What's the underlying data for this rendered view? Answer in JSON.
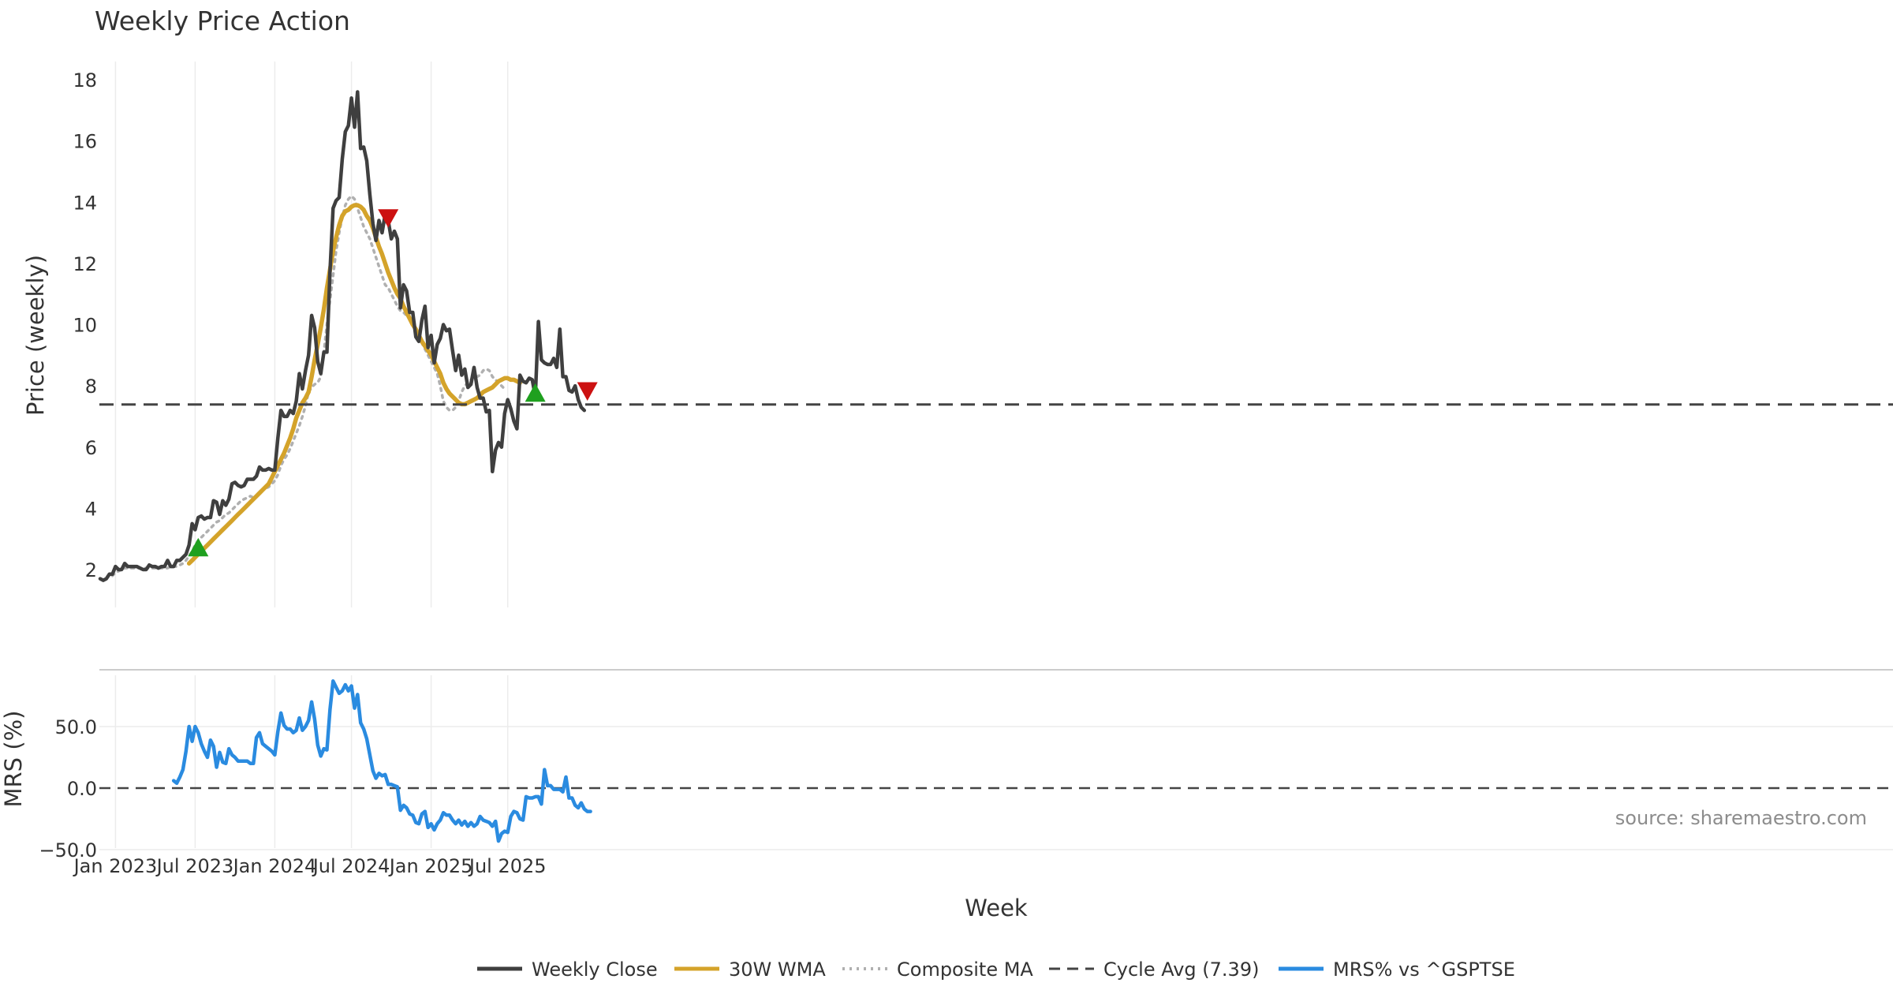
{
  "chart_data": [
    {
      "type": "line",
      "title": "Weekly Price Action",
      "ylabel": "Price (weekly)",
      "xlabel": "Week",
      "ylim": [
        1,
        19
      ],
      "yticks": [
        2,
        4,
        6,
        8,
        10,
        12,
        14,
        16,
        18
      ],
      "x_start": "2022-11-28",
      "x_step_weeks": 1,
      "reference_line": {
        "name": "Cycle Avg (7.39)",
        "value": 7.39
      },
      "series": [
        {
          "name": "Weekly Close",
          "color": "#3f3f3f",
          "style": "solid",
          "values": [
            1.7,
            1.65,
            1.7,
            1.85,
            1.85,
            2.1,
            2.0,
            2.0,
            2.2,
            2.1,
            2.1,
            2.1,
            2.1,
            2.05,
            2.0,
            2.0,
            2.15,
            2.1,
            2.1,
            2.05,
            2.1,
            2.1,
            2.3,
            2.1,
            2.1,
            2.3,
            2.3,
            2.4,
            2.5,
            2.8,
            3.5,
            3.3,
            3.7,
            3.75,
            3.65,
            3.7,
            3.7,
            4.25,
            4.2,
            3.8,
            4.25,
            4.1,
            4.3,
            4.8,
            4.85,
            4.75,
            4.7,
            4.75,
            4.95,
            4.95,
            4.95,
            5.05,
            5.35,
            5.25,
            5.25,
            5.3,
            5.25,
            5.25,
            6.3,
            7.2,
            7.0,
            7.0,
            7.2,
            7.1,
            7.5,
            8.4,
            7.9,
            8.5,
            9.0,
            10.3,
            9.9,
            8.8,
            8.4,
            9.1,
            9.1,
            11.75,
            13.8,
            14.05,
            14.15,
            15.4,
            16.3,
            16.5,
            17.4,
            16.45,
            17.6,
            15.75,
            15.8,
            15.35,
            14.25,
            13.3,
            12.75,
            13.4,
            13.0,
            13.6,
            13.4,
            12.8,
            13.05,
            12.8,
            10.55,
            11.3,
            11.1,
            10.4,
            10.4,
            9.6,
            9.45,
            10.15,
            10.6,
            9.25,
            9.65,
            8.75,
            9.35,
            9.55,
            10.0,
            9.8,
            9.85,
            9.15,
            8.5,
            9.0,
            8.35,
            8.55,
            7.95,
            8.05,
            8.6,
            7.95,
            7.6,
            7.6,
            7.15,
            7.2,
            5.2,
            5.9,
            6.15,
            6.0,
            7.1,
            7.55,
            7.25,
            6.85,
            6.6,
            8.35,
            8.15,
            8.1,
            8.25,
            8.2,
            7.65,
            10.1,
            8.85,
            8.75,
            8.7,
            8.7,
            8.9,
            8.6,
            9.85,
            8.3,
            8.3,
            7.85,
            7.8,
            8.0,
            7.55,
            7.3,
            7.2
          ]
        },
        {
          "name": "30W WMA",
          "color": "#d4a32a",
          "style": "solid",
          "start_week": 29,
          "values": [
            2.2,
            2.3,
            2.4,
            2.5,
            2.6,
            2.7,
            2.8,
            2.9,
            3.0,
            3.1,
            3.2,
            3.3,
            3.4,
            3.5,
            3.6,
            3.7,
            3.8,
            3.9,
            4.0,
            4.1,
            4.2,
            4.3,
            4.4,
            4.5,
            4.6,
            4.7,
            4.8,
            5.0,
            5.2,
            5.4,
            5.6,
            5.8,
            6.05,
            6.3,
            6.6,
            6.95,
            7.2,
            7.45,
            7.6,
            7.8,
            8.3,
            8.85,
            9.35,
            9.9,
            10.5,
            11.2,
            11.8,
            12.4,
            12.85,
            13.25,
            13.55,
            13.7,
            13.75,
            13.85,
            13.9,
            13.9,
            13.85,
            13.75,
            13.55,
            13.4,
            13.15,
            12.85,
            12.55,
            12.3,
            12.0,
            11.7,
            11.45,
            11.2,
            11.0,
            10.85,
            10.6,
            10.4,
            10.2,
            10.0,
            9.85,
            9.65,
            9.45,
            9.3,
            9.15,
            9.0,
            8.8,
            8.6,
            8.4,
            8.1,
            7.9,
            7.75,
            7.65,
            7.55,
            7.45,
            7.4,
            7.4,
            7.45,
            7.5,
            7.55,
            7.6,
            7.7,
            7.8,
            7.85,
            7.9,
            7.95,
            8.05,
            8.15,
            8.2,
            8.25,
            8.25,
            8.2,
            8.2,
            8.15,
            8.1
          ]
        },
        {
          "name": "Composite MA",
          "color": "#b0b0b0",
          "style": "dotted",
          "start_week": 4,
          "values": [
            1.8,
            1.9,
            1.95,
            2.0,
            2.05,
            2.05,
            2.05,
            2.05,
            2.05,
            2.05,
            2.05,
            2.05,
            2.05,
            2.05,
            2.05,
            2.05,
            2.05,
            2.05,
            2.05,
            2.1,
            2.1,
            2.1,
            2.15,
            2.2,
            2.3,
            2.45,
            2.6,
            2.8,
            2.95,
            3.05,
            3.15,
            3.25,
            3.35,
            3.45,
            3.55,
            3.6,
            3.7,
            3.8,
            3.85,
            3.95,
            4.05,
            4.15,
            4.25,
            4.3,
            4.35,
            4.4,
            4.35,
            4.4,
            4.5,
            4.6,
            4.65,
            4.7,
            4.8,
            4.9,
            5.1,
            5.4,
            5.6,
            5.75,
            5.95,
            6.2,
            6.45,
            6.7,
            7.0,
            7.35,
            7.8,
            7.95,
            8.05,
            8.1,
            8.3,
            9.1,
            10.0,
            10.8,
            11.6,
            12.4,
            13.0,
            13.5,
            13.9,
            14.1,
            14.2,
            14.1,
            13.8,
            13.5,
            13.2,
            13.0,
            12.8,
            12.5,
            12.2,
            11.9,
            11.6,
            11.3,
            11.2,
            11.0,
            10.8,
            10.6,
            10.45,
            10.4,
            10.3,
            10.25,
            10.0,
            9.8,
            9.6,
            9.4,
            9.2,
            9.0,
            8.8,
            8.6,
            8.4,
            8.0,
            7.5,
            7.3,
            7.2,
            7.2,
            7.3,
            7.5,
            7.8,
            8.0,
            8.1,
            8.2,
            8.3,
            8.3,
            8.35,
            8.5,
            8.55,
            8.5,
            8.3,
            8.2,
            8.1,
            8.0,
            7.9
          ]
        }
      ],
      "markers": [
        {
          "type": "buy",
          "week": 32,
          "value": 2.7,
          "color": "#1fa01f"
        },
        {
          "type": "sell",
          "week": 94,
          "value": 13.5,
          "color": "#cc1111"
        },
        {
          "type": "buy",
          "week": 142,
          "value": 7.75,
          "color": "#1fa01f"
        },
        {
          "type": "sell",
          "week": 159,
          "value": 7.85,
          "color": "#cc1111"
        }
      ]
    },
    {
      "type": "line",
      "ylabel": "MRS (%)",
      "ylim": [
        -50,
        90
      ],
      "yticks": [
        "50.0",
        "0.0",
        "−50.0"
      ],
      "ytick_values": [
        50,
        0,
        -50
      ],
      "reference_line": {
        "value": 0
      },
      "xticks": [
        "Jan 2023",
        "Jul 2023",
        "Jan 2024",
        "Jul 2024",
        "Jan 2025",
        "Jul 2025"
      ],
      "xtick_weeks": [
        5,
        31,
        57,
        82,
        108,
        133
      ],
      "series": [
        {
          "name": "MRS% vs ^GSPTSE",
          "color": "#2a8be0",
          "style": "solid",
          "start_week": 24,
          "values": [
            6,
            4,
            9,
            15,
            30,
            50,
            38,
            50,
            45,
            36,
            30,
            25,
            39,
            34,
            17,
            29,
            21,
            20,
            32,
            27,
            25,
            22,
            22,
            22,
            22,
            20,
            20,
            41,
            45,
            36,
            34,
            32,
            30,
            27,
            46,
            61,
            51,
            48,
            48,
            45,
            47,
            57,
            47,
            50,
            55,
            70,
            56,
            35,
            26,
            32,
            31,
            64,
            87,
            82,
            77,
            79,
            84,
            79,
            83,
            65,
            76,
            53,
            48,
            40,
            27,
            14,
            8,
            12,
            10,
            11,
            3,
            3,
            2,
            1,
            -18,
            -14,
            -16,
            -21,
            -22,
            -28,
            -29,
            -21,
            -19,
            -32,
            -29,
            -34,
            -29,
            -26,
            -20,
            -22,
            -22,
            -26,
            -29,
            -26,
            -30,
            -27,
            -31,
            -28,
            -31,
            -29,
            -23,
            -26,
            -27,
            -28,
            -31,
            -27,
            -43,
            -37,
            -35,
            -36,
            -23,
            -19,
            -20,
            -25,
            -26,
            -7,
            -8,
            -8,
            -7,
            -7,
            -13,
            15,
            2,
            2,
            -1,
            -1,
            -1,
            -3,
            9,
            -8,
            -8,
            -14,
            -16,
            -12,
            -17,
            -19,
            -19
          ]
        }
      ]
    }
  ],
  "legend": [
    "Weekly Close",
    "30W WMA",
    "Composite MA",
    "Cycle Avg (7.39)",
    "MRS% vs ^GSPTSE"
  ],
  "watermark": "source: sharemaestro.com"
}
